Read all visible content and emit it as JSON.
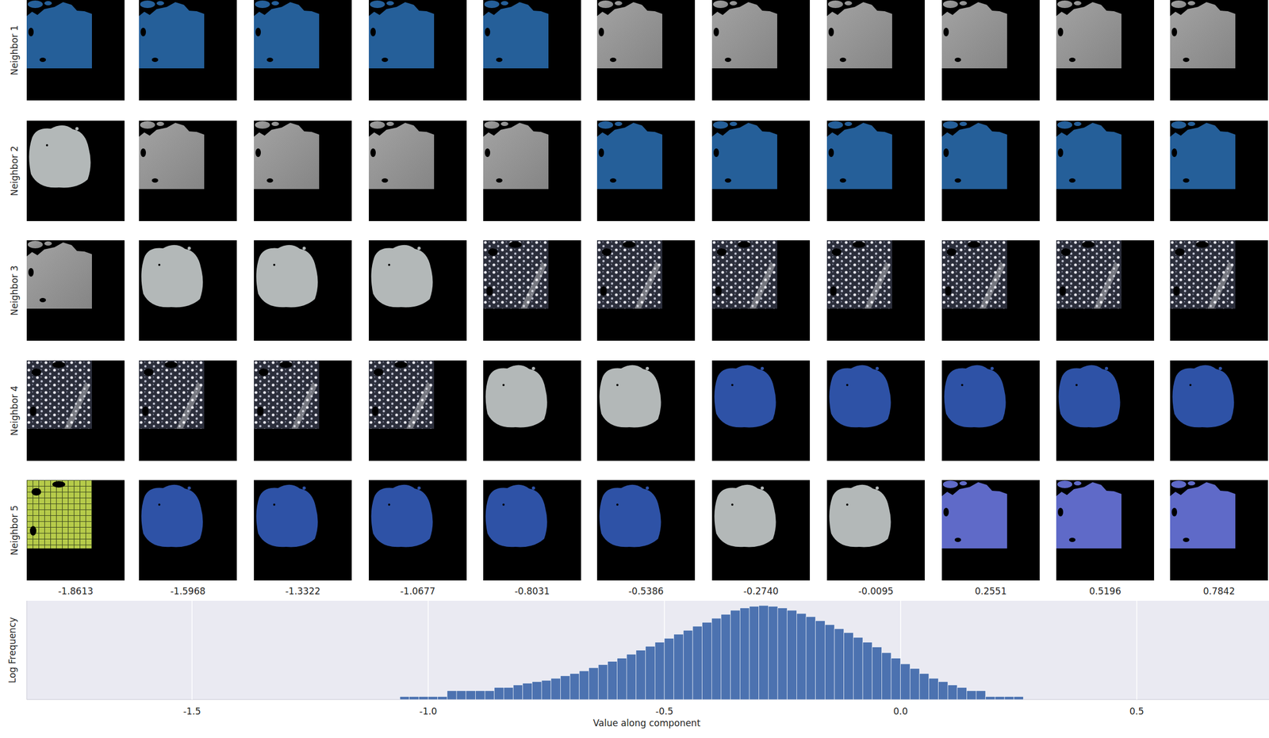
{
  "chart_data": {
    "type": "histogram",
    "row_labels": [
      "Neighbor 1",
      "Neighbor 2",
      "Neighbor 3",
      "Neighbor 4",
      "Neighbor 5"
    ],
    "column_values": [
      -1.8613,
      -1.5968,
      -1.3322,
      -1.0677,
      -0.8031,
      -0.5386,
      {
        "value": -0.274,
        "label": "-0.2740"
      },
      -0.0095,
      0.2551,
      0.5196,
      0.7842
    ],
    "xlabel": "Value along component",
    "ylabel": "Log Frequency",
    "bins": [
      -1.06,
      -1.04,
      -1.02,
      -1.0,
      -0.98,
      -0.96,
      -0.94,
      -0.92,
      -0.9,
      -0.88,
      -0.86,
      -0.84,
      -0.82,
      -0.8,
      -0.78,
      -0.76,
      -0.74,
      -0.72,
      -0.7,
      -0.68,
      -0.66,
      -0.64,
      -0.62,
      -0.6,
      -0.58,
      -0.56,
      -0.54,
      -0.52,
      -0.5,
      -0.48,
      -0.46,
      -0.44,
      -0.42,
      -0.4,
      -0.38,
      -0.36,
      -0.34,
      -0.32,
      -0.3,
      -0.28,
      -0.26,
      -0.24,
      -0.22,
      -0.2,
      -0.18,
      -0.16,
      -0.14,
      -0.12,
      -0.1,
      -0.08,
      -0.06,
      -0.04,
      -0.02,
      0,
      0.02,
      0.04,
      0.06,
      0.08,
      0.1,
      0.12,
      0.14,
      0.16,
      0.18,
      0.2,
      0.22,
      0.24,
      0.26
    ],
    "counts": [
      1,
      1,
      1,
      1,
      1,
      2,
      2,
      2,
      2,
      2,
      3,
      3,
      4,
      5,
      6,
      7,
      9,
      12,
      16,
      22,
      32,
      46,
      68,
      100,
      162,
      261,
      422,
      681,
      1101,
      1778,
      2873,
      4642,
      7499,
      12115,
      19573,
      31623,
      42170,
      51090,
      56234,
      51090,
      42170,
      31623,
      21544,
      14678,
      9085,
      5623,
      3481,
      2154,
      1212,
      681,
      383,
      196,
      100,
      51,
      29,
      16,
      9,
      6,
      4,
      3,
      2,
      2,
      1,
      1,
      1,
      1
    ],
    "color": "#4c72b0",
    "xlim": [
      -1.85,
      0.78
    ],
    "ylim": [
      0.7,
      100000
    ],
    "xticks": [
      -1.5,
      {
        "value": -1.0,
        "label": "-1.0"
      },
      -0.5,
      {
        "value": 0.0,
        "label": "0.0"
      },
      0.5
    ],
    "log": "y",
    "grid": true,
    "tick_labels": "x"
  }
}
